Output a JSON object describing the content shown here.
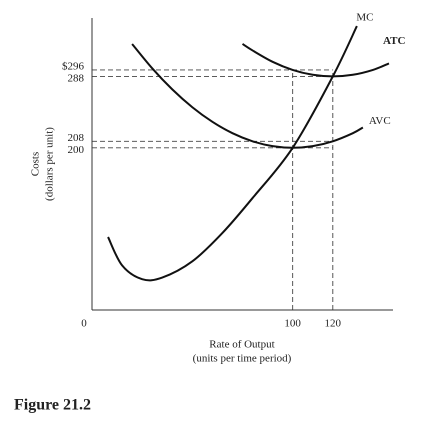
{
  "chart_data": {
    "type": "line",
    "ylabel": [
      "Costs",
      "(dollars per unit)"
    ],
    "xlabel": [
      "Rate of Output",
      "(units per time period)"
    ],
    "caption": "Figure 21.2",
    "xlim": [
      0,
      150
    ],
    "ylim": [
      0,
      360
    ],
    "xticks": [
      0,
      100,
      120
    ],
    "yticks": [
      {
        "value": 296,
        "label": "$296"
      },
      288,
      208,
      200
    ],
    "series": [
      {
        "name": "MC",
        "color": "#111111",
        "x": [
          8,
          15,
          25,
          35,
          50,
          65,
          80,
          100,
          120,
          132
        ],
        "values": [
          90,
          55,
          38,
          40,
          60,
          95,
          138,
          200,
          288,
          350
        ]
      },
      {
        "name": "ATC",
        "color": "#111111",
        "x": [
          75,
          80,
          90,
          100,
          110,
          120,
          130,
          140,
          148
        ],
        "values": [
          328,
          320,
          306,
          296,
          290,
          288,
          290,
          296,
          304
        ]
      },
      {
        "name": "AVC",
        "color": "#111111",
        "x": [
          20,
          30,
          40,
          50,
          60,
          70,
          80,
          90,
          100,
          110,
          120,
          130,
          135
        ],
        "values": [
          328,
          298,
          272,
          250,
          232,
          218,
          208,
          202,
          200,
          202,
          208,
          218,
          225
        ]
      }
    ]
  }
}
